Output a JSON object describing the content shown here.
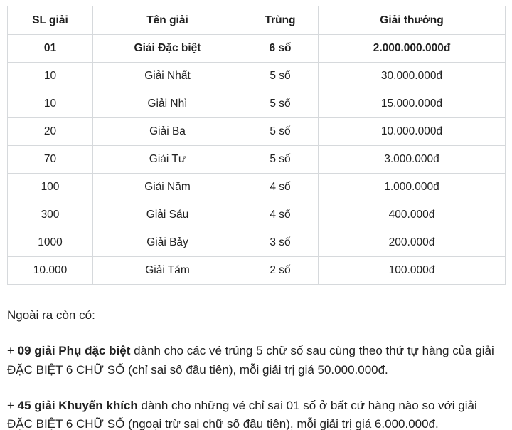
{
  "table": {
    "headers": {
      "sl": "SL giải",
      "ten": "Tên giải",
      "trung": "Trùng",
      "thuong": "Giải thưởng"
    },
    "rows": [
      {
        "sl": "01",
        "ten": "Giải Đặc biệt",
        "trung": "6 số",
        "thuong": "2.000.000.000đ"
      },
      {
        "sl": "10",
        "ten": "Giải Nhất",
        "trung": "5 số",
        "thuong": "30.000.000đ"
      },
      {
        "sl": "10",
        "ten": "Giải Nhì",
        "trung": "5 số",
        "thuong": "15.000.000đ"
      },
      {
        "sl": "20",
        "ten": "Giải Ba",
        "trung": "5 số",
        "thuong": "10.000.000đ"
      },
      {
        "sl": "70",
        "ten": "Giải Tư",
        "trung": "5 số",
        "thuong": "3.000.000đ"
      },
      {
        "sl": "100",
        "ten": "Giải Năm",
        "trung": "4 số",
        "thuong": "1.000.000đ"
      },
      {
        "sl": "300",
        "ten": "Giải Sáu",
        "trung": "4 số",
        "thuong": "400.000đ"
      },
      {
        "sl": "1000",
        "ten": "Giải Bảy",
        "trung": "3 số",
        "thuong": "200.000đ"
      },
      {
        "sl": "10.000",
        "ten": "Giải Tám",
        "trung": "2 số",
        "thuong": "100.000đ"
      }
    ]
  },
  "notes": {
    "intro": "Ngoài ra còn có:",
    "items": [
      {
        "prefix": "+ ",
        "bold": "09 giải Phụ đặc biệt",
        "rest": " dành cho các vé trúng 5 chữ số sau cùng theo thứ tự hàng của giải ĐẶC BIỆT 6 CHỮ SỐ (chỉ sai số đầu tiên), mỗi giải trị giá 50.000.000đ."
      },
      {
        "prefix": "+ ",
        "bold": "45 giải Khuyến khích",
        "rest": " dành cho những vé chỉ sai 01 số ở bất cứ hàng nào so với giải ĐẶC BIỆT 6 CHỮ SỐ (ngoại trừ sai chữ số đầu tiên), mỗi giải trị giá 6.000.000đ."
      }
    ]
  },
  "colors": {
    "border": "#d6d9dc",
    "text": "#212121",
    "background": "#ffffff"
  }
}
